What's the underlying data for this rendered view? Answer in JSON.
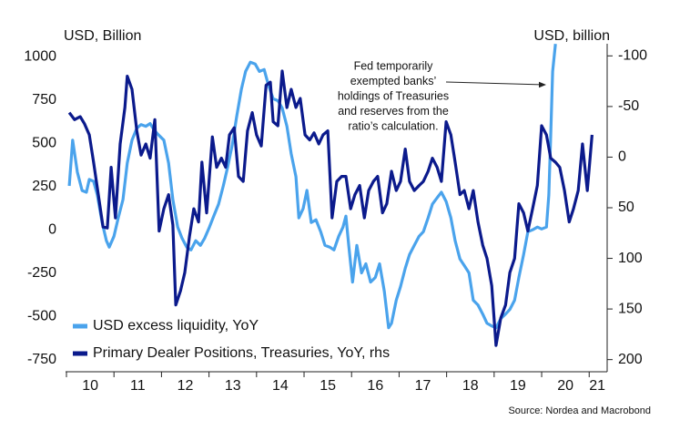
{
  "chart_data": {
    "type": "line",
    "y_axis_label": "USD, Billion",
    "y2_axis_label": "USD, billion",
    "annotation": [
      "Fed temporarily",
      "exempted banks’",
      "holdings of Treasuries",
      "and reserves from the",
      "ratio’s calculation."
    ],
    "source": "Source: Nordea and Macrobond",
    "xlim": [
      2010.0,
      2021.34
    ],
    "xticks": [
      {
        "value": 2010,
        "label": "10"
      },
      {
        "value": 2011,
        "label": "11"
      },
      {
        "value": 2012,
        "label": "12"
      },
      {
        "value": 2013,
        "label": "13"
      },
      {
        "value": 2014,
        "label": "14"
      },
      {
        "value": 2015,
        "label": "15"
      },
      {
        "value": 2016,
        "label": "16"
      },
      {
        "value": 2017,
        "label": "17"
      },
      {
        "value": 2018,
        "label": "18"
      },
      {
        "value": 2019,
        "label": "19"
      },
      {
        "value": 2020,
        "label": "20"
      },
      {
        "value": 2021,
        "label": "21"
      }
    ],
    "ylim": [
      -820,
      1075
    ],
    "yticks": [
      -750,
      -500,
      -250,
      0,
      250,
      500,
      750,
      1000
    ],
    "y2lim": [
      212,
      -112
    ],
    "y2ticks": [
      -100,
      -50,
      0,
      50,
      100,
      150,
      200
    ],
    "legend": "lower left",
    "series": [
      {
        "name": "USD excess liquidity, YoY",
        "color": "#4aa3ec",
        "x": [
          2010.06,
          2010.13,
          2010.23,
          2010.33,
          2010.42,
          2010.48,
          2010.57,
          2010.65,
          2010.75,
          2010.84,
          2010.9,
          2011.0,
          2011.09,
          2011.19,
          2011.28,
          2011.38,
          2011.48,
          2011.57,
          2011.67,
          2011.76,
          2011.86,
          2011.95,
          2012.05,
          2012.15,
          2012.24,
          2012.34,
          2012.43,
          2012.53,
          2012.62,
          2012.72,
          2012.82,
          2012.91,
          2013.01,
          2013.1,
          2013.2,
          2013.3,
          2013.39,
          2013.49,
          2013.58,
          2013.68,
          2013.77,
          2013.87,
          2013.97,
          2014.06,
          2014.16,
          2014.25,
          2014.35,
          2014.45,
          2014.54,
          2014.64,
          2014.73,
          2014.83,
          2014.89,
          2014.98,
          2015.06,
          2015.15,
          2015.25,
          2015.35,
          2015.44,
          2015.54,
          2015.63,
          2015.73,
          2015.82,
          2015.88,
          2015.94,
          2016.02,
          2016.11,
          2016.21,
          2016.3,
          2016.4,
          2016.5,
          2016.59,
          2016.69,
          2016.78,
          2016.84,
          2016.94,
          2017.03,
          2017.13,
          2017.22,
          2017.32,
          2017.42,
          2017.51,
          2017.61,
          2017.7,
          2017.8,
          2017.89,
          2017.99,
          2018.09,
          2018.18,
          2018.28,
          2018.37,
          2018.47,
          2018.56,
          2018.66,
          2018.76,
          2018.85,
          2018.95,
          2019.04,
          2019.14,
          2019.24,
          2019.33,
          2019.43,
          2019.52,
          2019.62,
          2019.71,
          2019.81,
          2019.91,
          2020.0,
          2020.1,
          2020.15,
          2020.19,
          2020.23,
          2020.29
        ],
        "values": [
          254,
          518,
          333,
          227,
          217,
          291,
          280,
          201,
          42,
          -63,
          -100,
          -37,
          69,
          175,
          386,
          518,
          587,
          608,
          598,
          614,
          571,
          545,
          518,
          386,
          175,
          16,
          -48,
          -100,
          -116,
          -63,
          -90,
          -48,
          16,
          79,
          148,
          254,
          360,
          492,
          651,
          810,
          915,
          968,
          958,
          915,
          926,
          836,
          757,
          746,
          704,
          598,
          439,
          307,
          69,
          122,
          228,
          42,
          58,
          -11,
          -90,
          -100,
          -116,
          -37,
          16,
          79,
          -90,
          -302,
          -90,
          -249,
          -196,
          -302,
          -275,
          -196,
          -355,
          -566,
          -540,
          -407,
          -328,
          -222,
          -143,
          -90,
          -37,
          -11,
          69,
          148,
          185,
          217,
          164,
          69,
          -63,
          -169,
          -206,
          -249,
          -407,
          -434,
          -487,
          -540,
          -556,
          -566,
          -513,
          -487,
          -460,
          -407,
          -275,
          -143,
          -11,
          0,
          16,
          5,
          16,
          201,
          545,
          915,
          1074
        ]
      },
      {
        "name": "Primary Dealer Positions, Treasuries, YoY, rhs",
        "color": "#0b1a8c",
        "axis": "y2",
        "x": [
          2010.06,
          2010.17,
          2010.29,
          2010.38,
          2010.48,
          2010.57,
          2010.67,
          2010.77,
          2010.86,
          2010.94,
          2011.03,
          2011.13,
          2011.23,
          2011.28,
          2011.38,
          2011.48,
          2011.57,
          2011.67,
          2011.76,
          2011.86,
          2011.95,
          2012.05,
          2012.15,
          2012.24,
          2012.3,
          2012.4,
          2012.49,
          2012.59,
          2012.68,
          2012.78,
          2012.85,
          2012.95,
          2013.07,
          2013.16,
          2013.26,
          2013.35,
          2013.43,
          2013.53,
          2013.62,
          2013.72,
          2013.81,
          2013.91,
          2014.0,
          2014.1,
          2014.2,
          2014.29,
          2014.35,
          2014.45,
          2014.54,
          2014.64,
          2014.73,
          2014.83,
          2014.92,
          2015.02,
          2015.12,
          2015.21,
          2015.31,
          2015.4,
          2015.5,
          2015.59,
          2015.69,
          2015.79,
          2015.88,
          2015.98,
          2016.07,
          2016.17,
          2016.27,
          2016.36,
          2016.46,
          2016.55,
          2016.65,
          2016.74,
          2016.84,
          2016.94,
          2017.03,
          2017.13,
          2017.22,
          2017.32,
          2017.42,
          2017.51,
          2017.61,
          2017.7,
          2017.8,
          2017.89,
          2017.99,
          2018.09,
          2018.18,
          2018.28,
          2018.37,
          2018.47,
          2018.56,
          2018.66,
          2018.76,
          2018.85,
          2018.95,
          2019.04,
          2019.14,
          2019.24,
          2019.33,
          2019.43,
          2019.52,
          2019.62,
          2019.71,
          2019.81,
          2019.91,
          2020.0,
          2020.1,
          2020.19,
          2020.29,
          2020.38,
          2020.48,
          2020.58,
          2020.67,
          2020.77,
          2020.86,
          2020.96,
          2021.06
        ],
        "values": [
          -44,
          -37,
          -40,
          -33,
          -22,
          5,
          37,
          69,
          70,
          10,
          60,
          -13,
          -49,
          -80,
          -67,
          -26,
          -2,
          -13,
          1,
          -37,
          73,
          51,
          37,
          67,
          146,
          132,
          114,
          78,
          51,
          64,
          5,
          55,
          -20,
          10,
          1,
          10,
          -22,
          -29,
          19,
          24,
          -26,
          -44,
          -22,
          -11,
          -71,
          -74,
          -35,
          -31,
          -85,
          -49,
          -67,
          -49,
          -58,
          -22,
          -17,
          -24,
          -13,
          -22,
          -26,
          60,
          24,
          19,
          19,
          51,
          37,
          28,
          60,
          33,
          24,
          19,
          55,
          46,
          14,
          33,
          24,
          -8,
          24,
          33,
          28,
          24,
          14,
          1,
          10,
          24,
          -35,
          -22,
          5,
          37,
          33,
          51,
          33,
          64,
          87,
          100,
          127,
          186,
          159,
          146,
          114,
          100,
          46,
          55,
          73,
          51,
          28,
          -31,
          -22,
          1,
          5,
          10,
          33,
          64,
          51,
          33,
          -13,
          33,
          -22
        ]
      }
    ]
  }
}
